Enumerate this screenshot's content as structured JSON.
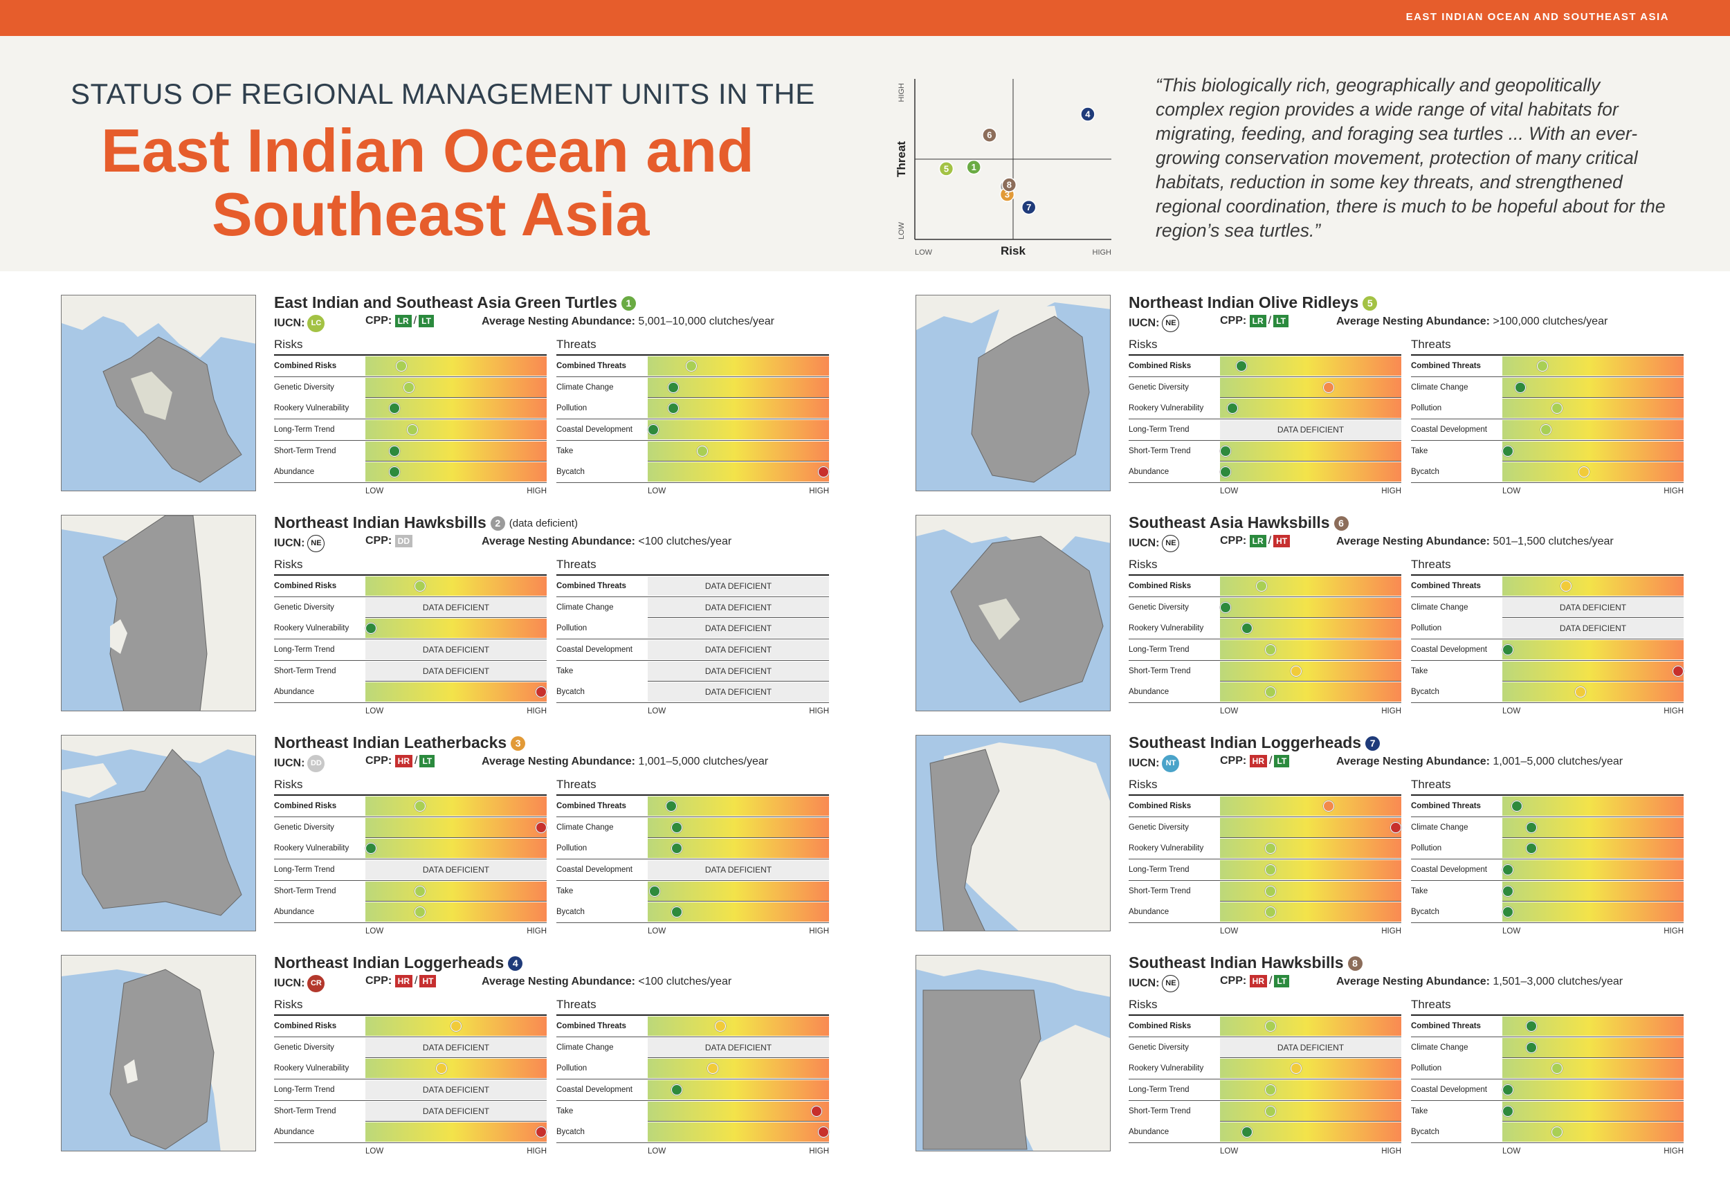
{
  "header": {
    "region_tag": "EAST INDIAN OCEAN AND SOUTHEAST ASIA",
    "kicker": "STATUS OF REGIONAL MANAGEMENT UNITS IN THE",
    "title_line1": "East Indian Ocean and",
    "title_line2": "Southeast Asia",
    "quote": "“This biologically rich, geographically and geopolitically complex region provides a wide range of vital habitats for migrating, feeding, and foraging sea turtles ... With an ever-growing conservation movement, protection of many critical habitats, reduction in some key threats, and strengthened regional coordination, there is much to be hopeful about for the region’s sea turtles.”"
  },
  "matrix": {
    "x_label": "Risk",
    "y_label": "Threat",
    "x_low": "LOW",
    "x_high": "HIGH",
    "y_low": "LOW",
    "y_high": "HIGH",
    "points": [
      {
        "num": "1",
        "risk": 0.3,
        "threat": 0.45,
        "color": "#6aab43"
      },
      {
        "num": "2",
        "risk": 0.47,
        "threat": 0.33,
        "color": "#9a9a9a"
      },
      {
        "num": "3",
        "risk": 0.47,
        "threat": 0.28,
        "color": "#e29a37"
      },
      {
        "num": "4",
        "risk": 0.88,
        "threat": 0.78,
        "color": "#1f3b7a"
      },
      {
        "num": "5",
        "risk": 0.16,
        "threat": 0.44,
        "color": "#a3c244"
      },
      {
        "num": "6",
        "risk": 0.38,
        "threat": 0.65,
        "color": "#8c6d5a"
      },
      {
        "num": "7",
        "risk": 0.58,
        "threat": 0.2,
        "color": "#1f3b7a"
      },
      {
        "num": "8",
        "risk": 0.48,
        "threat": 0.34,
        "color": "#8c6d5a"
      }
    ]
  },
  "labels": {
    "iucn": "IUCN:",
    "cpp": "CPP:",
    "abundance_label": "Average Nesting Abundance:",
    "risks": "Risks",
    "threats": "Threats",
    "low": "LOW",
    "high": "HIGH",
    "dd": "DATA DEFICIENT",
    "risk_rows": [
      "Combined Risks",
      "Genetic Diversity",
      "Rookery Vulnerability",
      "Long-Term Trend",
      "Short-Term Trend",
      "Abundance"
    ],
    "threat_rows": [
      "Combined Threats",
      "Climate Change",
      "Pollution",
      "Coastal Development",
      "Take",
      "Bycatch"
    ]
  },
  "cards": [
    {
      "title": "East Indian and Southeast Asia Green Turtles",
      "num": "1",
      "num_color": "#6aab43",
      "note": "",
      "iucn": "LC",
      "iucn_bg": "#a3c244",
      "iucn_fg": "#ffffff",
      "cpp": [
        {
          "t": "LR",
          "c": "#2b8a3e"
        },
        {
          "t": "LT",
          "c": "#2b8a3e"
        }
      ],
      "abundance": "5,001–10,000 clutches/year",
      "risks": [
        0.2,
        0.24,
        0.16,
        0.26,
        0.16,
        0.16
      ],
      "threats": [
        0.24,
        0.14,
        0.14,
        0.03,
        0.3,
        0.97
      ],
      "map": 1
    },
    {
      "title": "Northeast Indian Olive Ridleys",
      "num": "5",
      "num_color": "#a3c244",
      "note": "",
      "iucn": "NE",
      "iucn_bg": "#ffffff",
      "iucn_fg": "#222222",
      "cpp": [
        {
          "t": "LR",
          "c": "#2b8a3e"
        },
        {
          "t": "LT",
          "c": "#2b8a3e"
        }
      ],
      "abundance": ">100,000 clutches/year",
      "risks": [
        0.12,
        0.6,
        0.07,
        null,
        0.03,
        0.03
      ],
      "threats": [
        0.22,
        0.1,
        0.3,
        0.24,
        0.03,
        0.45
      ],
      "map": 2
    },
    {
      "title": "Northeast Indian Hawksbills",
      "num": "2",
      "num_color": "#9a9a9a",
      "note": "(data deficient)",
      "iucn": "NE",
      "iucn_bg": "#ffffff",
      "iucn_fg": "#222222",
      "cpp": [
        {
          "t": "DD",
          "c": "#bcbcbc"
        }
      ],
      "abundance": "<100 clutches/year",
      "risks": [
        0.3,
        null,
        0.03,
        null,
        null,
        0.97
      ],
      "threats": [
        null,
        null,
        null,
        null,
        null,
        null
      ],
      "map": 3
    },
    {
      "title": "Southeast Asia Hawksbills",
      "num": "6",
      "num_color": "#8c6d5a",
      "note": "",
      "iucn": "NE",
      "iucn_bg": "#ffffff",
      "iucn_fg": "#222222",
      "cpp": [
        {
          "t": "LR",
          "c": "#2b8a3e"
        },
        {
          "t": "HT",
          "c": "#c62f2f"
        }
      ],
      "abundance": "501–1,500 clutches/year",
      "risks": [
        0.23,
        0.03,
        0.15,
        0.28,
        0.42,
        0.28
      ],
      "threats": [
        0.35,
        null,
        null,
        0.03,
        0.97,
        0.43
      ],
      "map": 4
    },
    {
      "title": "Northeast Indian Leatherbacks",
      "num": "3",
      "num_color": "#e29a37",
      "note": "",
      "iucn": "DD",
      "iucn_bg": "#c8c8c8",
      "iucn_fg": "#ffffff",
      "cpp": [
        {
          "t": "HR",
          "c": "#c62f2f"
        },
        {
          "t": "LT",
          "c": "#2b8a3e"
        }
      ],
      "abundance": "1,001–5,000 clutches/year",
      "risks": [
        0.3,
        0.97,
        0.03,
        null,
        0.3,
        0.3
      ],
      "threats": [
        0.13,
        0.16,
        0.16,
        null,
        0.04,
        0.16
      ],
      "map": 5
    },
    {
      "title": "Southeast Indian Loggerheads",
      "num": "7",
      "num_color": "#1f3b7a",
      "note": "",
      "iucn": "NT",
      "iucn_bg": "#4aa3c9",
      "iucn_fg": "#ffffff",
      "cpp": [
        {
          "t": "HR",
          "c": "#c62f2f"
        },
        {
          "t": "LT",
          "c": "#2b8a3e"
        }
      ],
      "abundance": "1,001–5,000 clutches/year",
      "risks": [
        0.6,
        0.97,
        0.28,
        0.28,
        0.28,
        0.28
      ],
      "threats": [
        0.08,
        0.16,
        0.16,
        0.03,
        0.03,
        0.03
      ],
      "map": 6
    },
    {
      "title": "Northeast Indian Loggerheads",
      "num": "4",
      "num_color": "#1f3b7a",
      "note": "",
      "iucn": "CR",
      "iucn_bg": "#b3382c",
      "iucn_fg": "#ffffff",
      "cpp": [
        {
          "t": "HR",
          "c": "#c62f2f"
        },
        {
          "t": "HT",
          "c": "#c62f2f"
        }
      ],
      "abundance": "<100 clutches/year",
      "risks": [
        0.5,
        null,
        0.42,
        null,
        null,
        0.97
      ],
      "threats": [
        0.4,
        null,
        0.36,
        0.16,
        0.93,
        0.97
      ],
      "map": 7
    },
    {
      "title": "Southeast Indian Hawksbills",
      "num": "8",
      "num_color": "#8c6d5a",
      "note": "",
      "iucn": "NE",
      "iucn_bg": "#ffffff",
      "iucn_fg": "#222222",
      "cpp": [
        {
          "t": "HR",
          "c": "#c62f2f"
        },
        {
          "t": "LT",
          "c": "#2b8a3e"
        }
      ],
      "abundance": "1,501–3,000 clutches/year",
      "risks": [
        0.28,
        null,
        0.42,
        0.28,
        0.28,
        0.15
      ],
      "threats": [
        0.16,
        0.16,
        0.3,
        0.03,
        0.03,
        0.3
      ],
      "map": 8
    }
  ]
}
